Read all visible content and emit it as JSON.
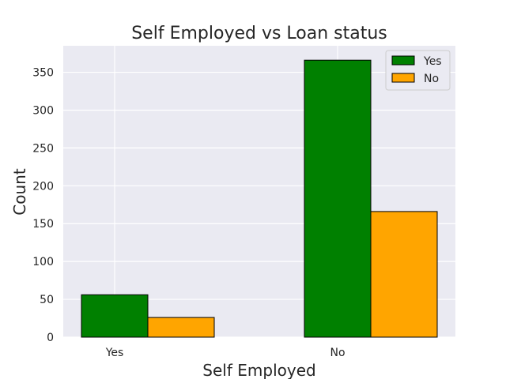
{
  "chart_data": {
    "type": "bar",
    "title": "Self Employed vs Loan status",
    "xlabel": "Self Employed",
    "ylabel": "Count",
    "categories": [
      "Yes",
      "No"
    ],
    "series": [
      {
        "name": "Yes",
        "values": [
          56,
          366
        ],
        "color": "#008000"
      },
      {
        "name": "No",
        "values": [
          26,
          166
        ],
        "color": "#FFA500"
      }
    ],
    "ylim": [
      0,
      385
    ],
    "yticks": [
      0,
      50,
      100,
      150,
      200,
      250,
      300,
      350
    ],
    "grid": true,
    "legend_position": "top-right",
    "background_color": "#EAEAF2",
    "grid_color": "#FFFFFF",
    "bar_edge_color": "#000000"
  }
}
